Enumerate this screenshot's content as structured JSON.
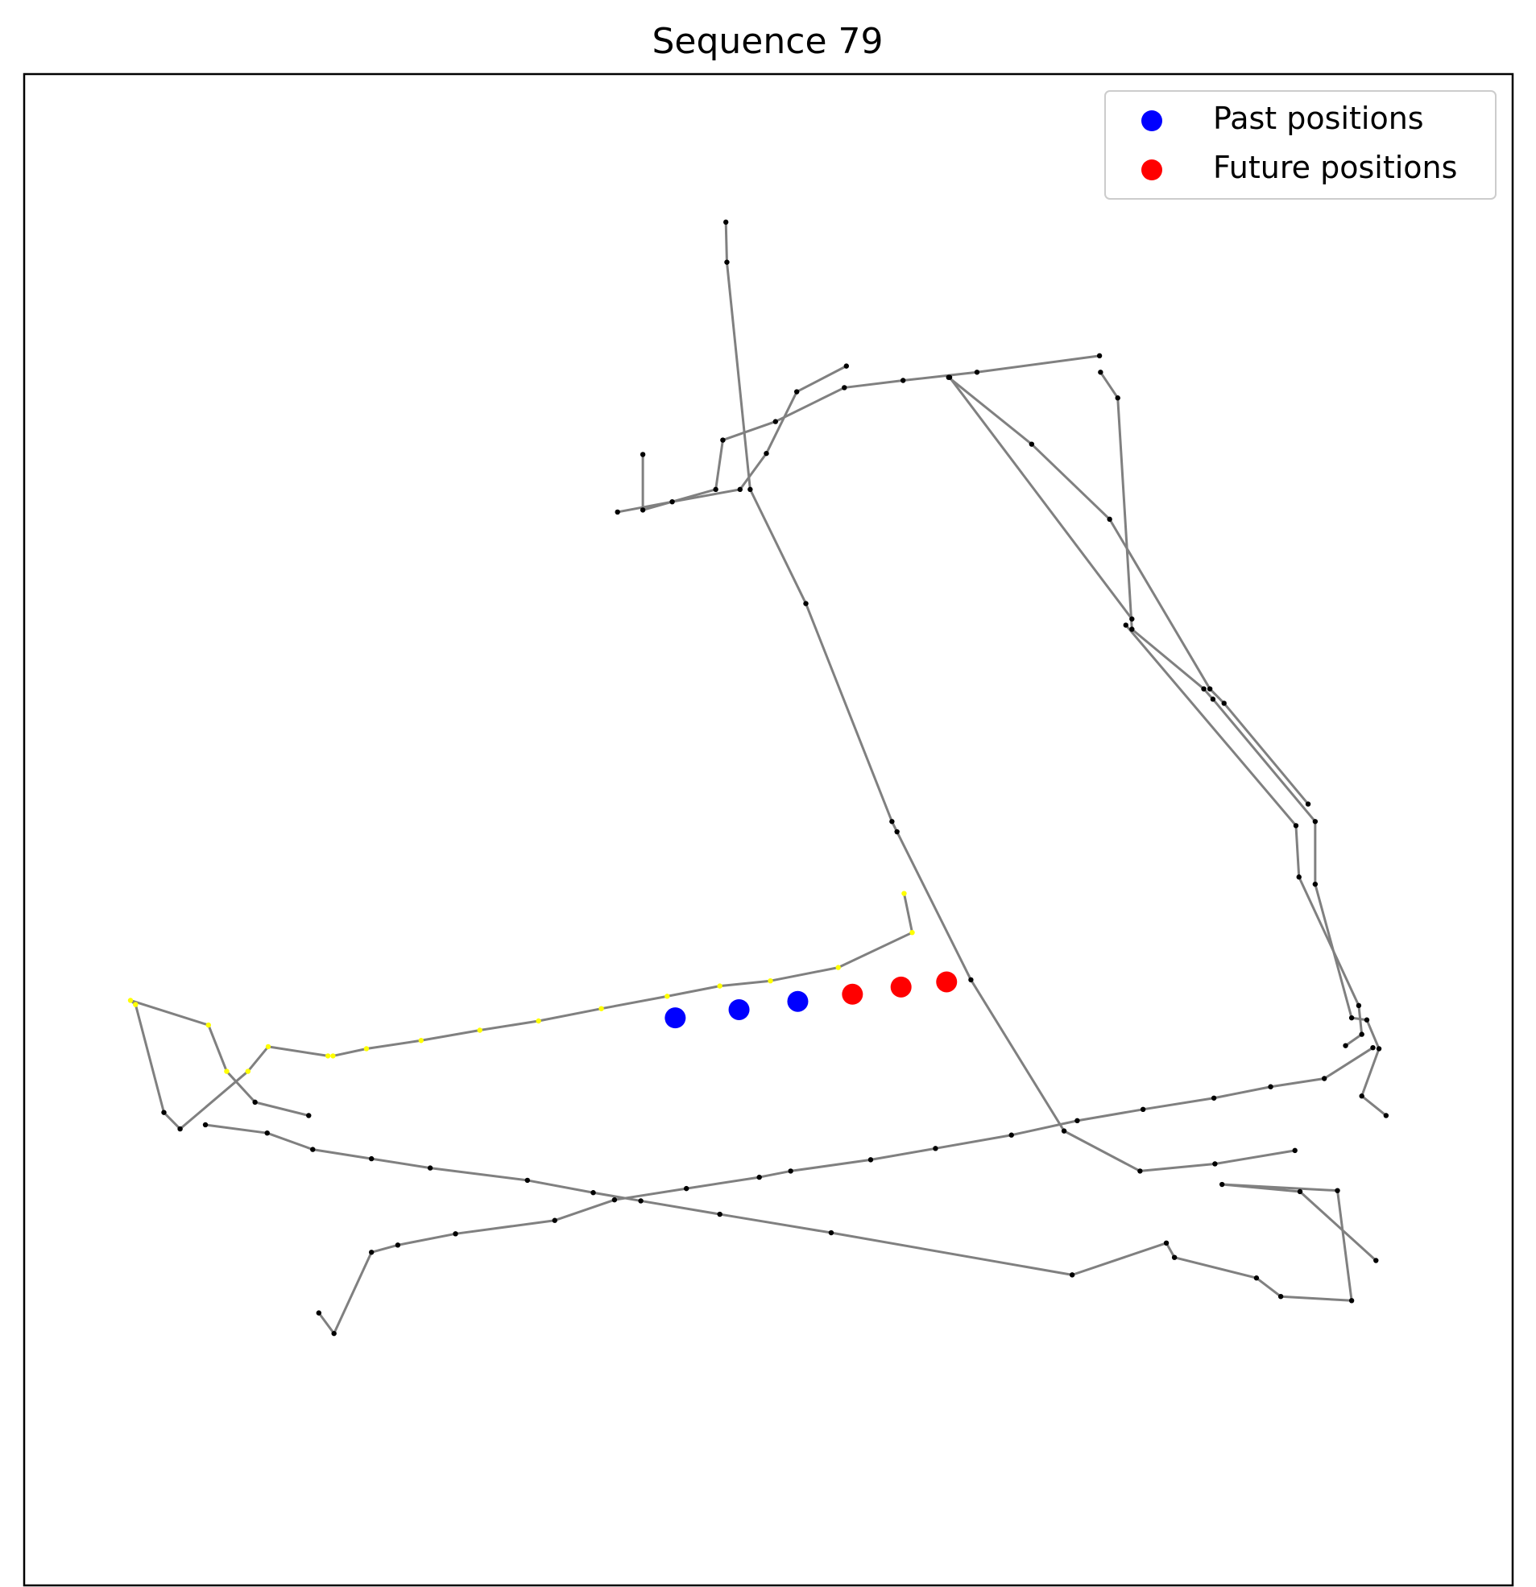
{
  "chart_data": {
    "type": "scatter",
    "title": "Sequence 79",
    "xlabel": "",
    "ylabel": "",
    "xlim": [
      -20,
      1450
    ],
    "ylim": [
      -1450,
      20
    ],
    "axis_ticks": "hidden",
    "grid": false,
    "legend_position": "top-right",
    "legend": [
      {
        "label": "Past positions",
        "color": "#0000ff"
      },
      {
        "label": "Future positions",
        "color": "#ff0000"
      }
    ],
    "series": [
      {
        "name": "Past positions",
        "color": "#0000ff",
        "points": [
          [
            623,
            -898
          ],
          [
            686,
            -890
          ],
          [
            744,
            -882
          ]
        ]
      },
      {
        "name": "Future positions",
        "color": "#ff0000",
        "points": [
          [
            798,
            -875
          ],
          [
            846,
            -868
          ],
          [
            891,
            -863
          ]
        ]
      }
    ],
    "map_lines": {
      "color": "#808080",
      "polylines": [
        [
          [
            673,
            -124
          ],
          [
            674,
            -163
          ],
          [
            697,
            -384
          ],
          [
            752,
            -495
          ],
          [
            837,
            -707
          ],
          [
            842,
            -717
          ],
          [
            915,
            -861
          ],
          [
            1007,
            -1008
          ],
          [
            1082,
            -1047
          ],
          [
            1156,
            -1040
          ],
          [
            1235,
            -1027
          ]
        ],
        [
          [
            591,
            -350
          ],
          [
            591,
            -404
          ],
          [
            663,
            -384
          ],
          [
            670,
            -336
          ],
          [
            722,
            -318
          ],
          [
            790,
            -285
          ],
          [
            848,
            -278
          ],
          [
            921,
            -270
          ],
          [
            1042,
            -254
          ]
        ],
        [
          [
            566,
            -406
          ],
          [
            620,
            -396
          ],
          [
            687,
            -384
          ],
          [
            713,
            -349
          ],
          [
            743,
            -289
          ],
          [
            792,
            -264
          ]
        ],
        [
          [
            893,
            -275
          ],
          [
            975,
            -340
          ],
          [
            1052,
            -413
          ],
          [
            1151,
            -578
          ],
          [
            1165,
            -592
          ],
          [
            1248,
            -690
          ]
        ],
        [
          [
            894,
            -275
          ],
          [
            1074,
            -510
          ]
        ],
        [
          [
            1043,
            -270
          ],
          [
            1060,
            -295
          ],
          [
            1074,
            -520
          ],
          [
            1145,
            -578
          ],
          [
            1154,
            -588
          ],
          [
            1255,
            -707
          ],
          [
            1255,
            -768
          ],
          [
            1291,
            -898
          ],
          [
            1306,
            -900
          ],
          [
            1318,
            -928
          ],
          [
            1301,
            -974
          ],
          [
            1325,
            -993
          ]
        ],
        [
          [
            1068,
            -516
          ],
          [
            1236,
            -711
          ],
          [
            1239,
            -761
          ],
          [
            1298,
            -886
          ],
          [
            1301,
            -914
          ],
          [
            1285,
            -925
          ]
        ],
        [
          [
            849,
            -777
          ],
          [
            857,
            -815
          ],
          [
            784,
            -849
          ],
          [
            717,
            -862
          ],
          [
            667,
            -867
          ],
          [
            615,
            -877
          ],
          [
            550,
            -889
          ],
          [
            488,
            -901
          ],
          [
            430,
            -910
          ],
          [
            372,
            -920
          ],
          [
            318,
            -928
          ],
          [
            285,
            -935
          ]
        ],
        [
          [
            280,
            -935
          ],
          [
            221,
            -926
          ],
          [
            201,
            -950
          ],
          [
            134,
            -1006
          ],
          [
            118,
            -990
          ],
          [
            90,
            -885
          ],
          [
            85,
            -881
          ],
          [
            162,
            -905
          ],
          [
            180,
            -950
          ],
          [
            208,
            -980
          ],
          [
            261,
            -993
          ]
        ],
        [
          [
            159,
            -1002
          ],
          [
            220,
            -1010
          ],
          [
            265,
            -1026
          ],
          [
            323,
            -1035
          ],
          [
            381,
            -1044
          ],
          [
            477,
            -1056
          ],
          [
            542,
            -1068
          ],
          [
            589,
            -1076
          ],
          [
            667,
            -1089
          ],
          [
            777,
            -1107
          ],
          [
            1015,
            -1148
          ],
          [
            1108,
            -1117
          ],
          [
            1116,
            -1131
          ],
          [
            1197,
            -1151
          ],
          [
            1221,
            -1169
          ],
          [
            1291,
            -1173
          ],
          [
            1277,
            -1066
          ],
          [
            1163,
            -1060
          ],
          [
            1240,
            -1067
          ],
          [
            1315,
            -1134
          ]
        ],
        [
          [
            271,
            -1185
          ],
          [
            286,
            -1205
          ],
          [
            323,
            -1126
          ],
          [
            349,
            -1119
          ],
          [
            406,
            -1108
          ],
          [
            504,
            -1095
          ],
          [
            563,
            -1075
          ],
          [
            634,
            -1064
          ],
          [
            706,
            -1053
          ],
          [
            737,
            -1047
          ],
          [
            816,
            -1036
          ],
          [
            880,
            -1025
          ],
          [
            955,
            -1012
          ],
          [
            1020,
            -998
          ],
          [
            1085,
            -987
          ],
          [
            1155,
            -976
          ],
          [
            1211,
            -965
          ],
          [
            1264,
            -957
          ],
          [
            1312,
            -927
          ]
        ]
      ]
    },
    "marker_colors": {
      "black": "#000000",
      "yellow": "#ffff00",
      "green": "#008000"
    }
  }
}
